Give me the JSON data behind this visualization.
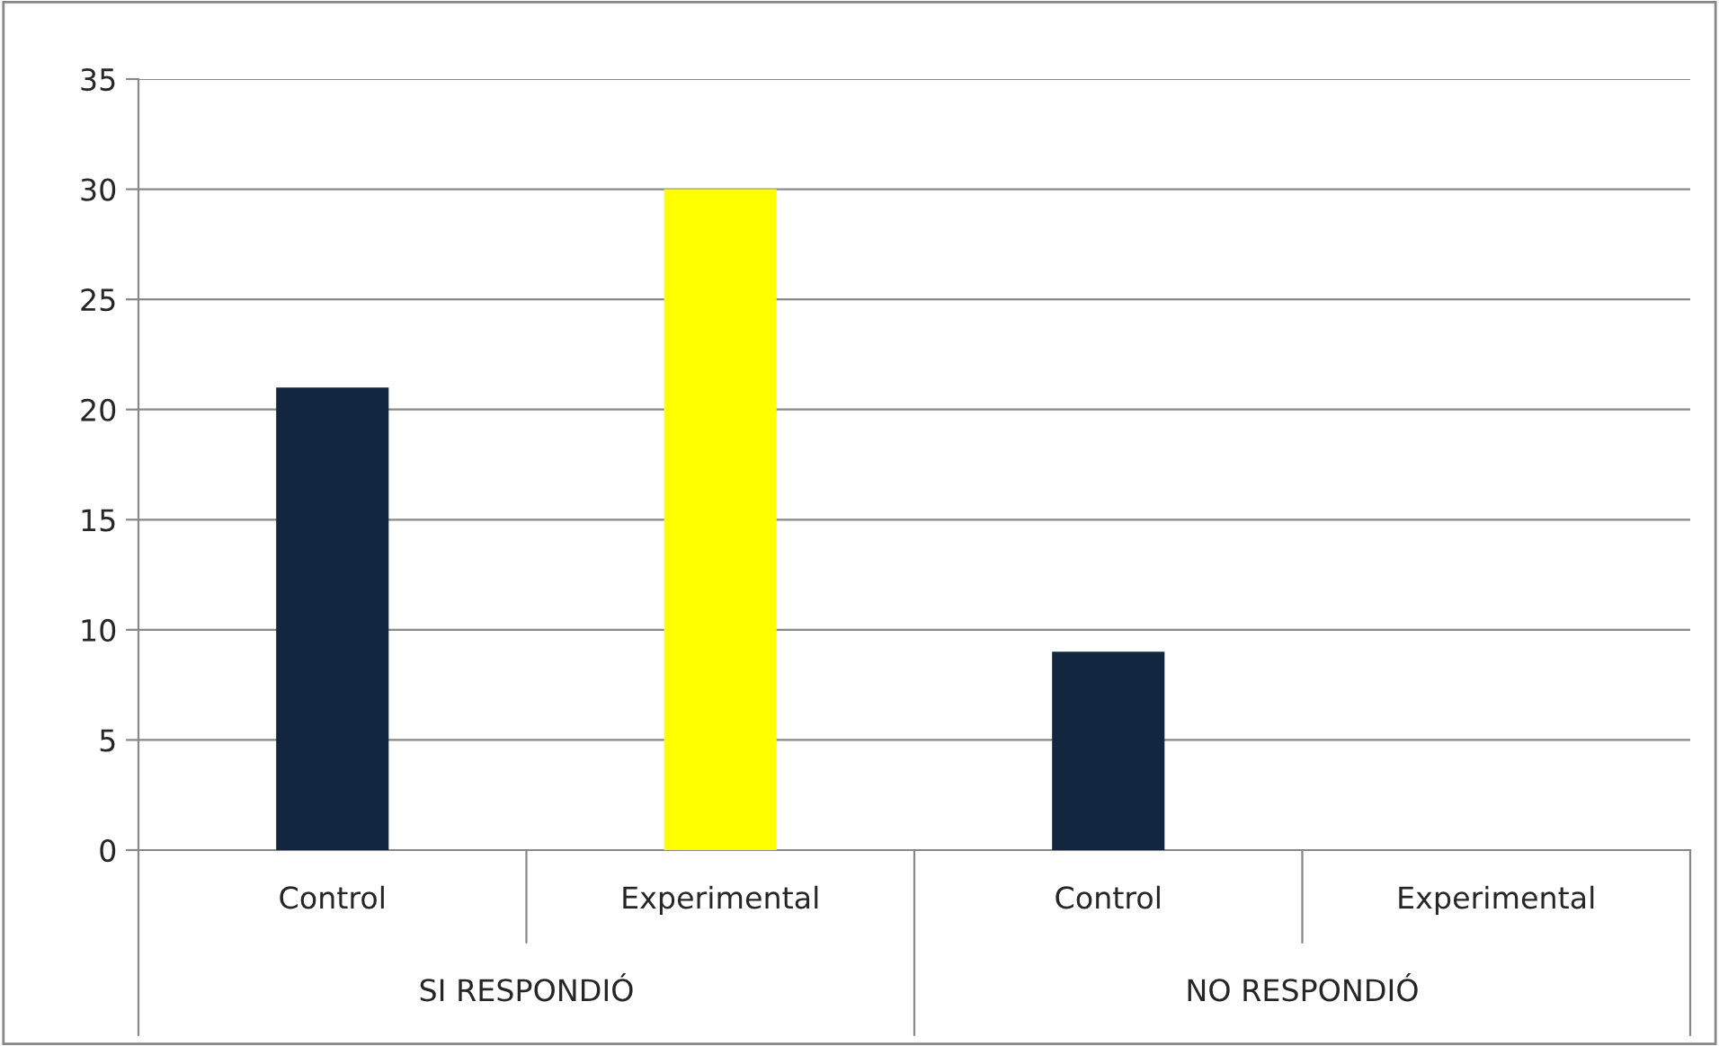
{
  "chart_data": {
    "type": "bar",
    "categories": [
      "Control",
      "Experimental",
      "Control",
      "Experimental"
    ],
    "values": [
      21,
      30,
      9,
      0
    ],
    "colors": [
      "#12263f",
      "#ffff00",
      "#12263f",
      null
    ],
    "annotations": [
      "SI RESPONDIÓ",
      "NO RESPONDIÓ"
    ],
    "ylim": [
      0,
      35
    ],
    "yticks": [
      0,
      5,
      10,
      15,
      20,
      25,
      30,
      35
    ],
    "grid": "y",
    "legend": false
  }
}
